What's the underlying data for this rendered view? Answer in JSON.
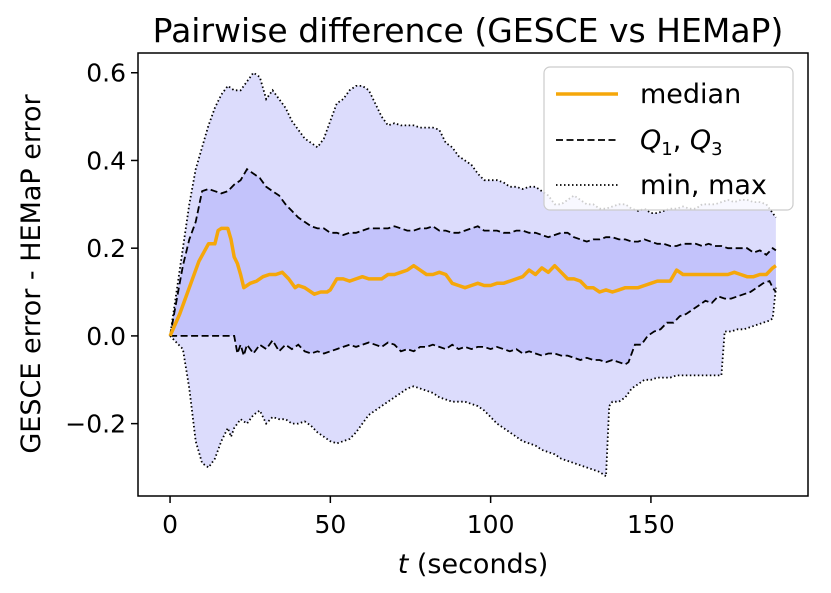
{
  "chart_data": {
    "type": "line",
    "title": "Pairwise difference (GESCE vs HEMaP)",
    "xlabel_italic": "t",
    "xlabel_rest": " (seconds)",
    "ylabel": "GESCE error - HEMaP error",
    "xlim": [
      -10,
      199
    ],
    "ylim": [
      -0.365,
      0.645
    ],
    "xticks": [
      0,
      50,
      100,
      150
    ],
    "xtick_labels": [
      "0",
      "50",
      "100",
      "150"
    ],
    "yticks": [
      -0.2,
      0.0,
      0.2,
      0.4,
      0.6
    ],
    "ytick_labels": [
      "−0.2",
      "0.0",
      "0.2",
      "0.4",
      "0.6"
    ],
    "legend_position": "top-right",
    "legend": {
      "median": "median",
      "q1": "Q",
      "q1_sub": "1",
      "q3": "Q",
      "q3_sub": "3",
      "minmax": "min, max"
    },
    "colors": {
      "median": "#f5a70a",
      "band_outer": "#dcdcfc",
      "band_inner": "#c3c3fb",
      "quartile_line": "#000000",
      "extreme_line": "#000000"
    },
    "series": [
      {
        "name": "median",
        "x": [
          0,
          3,
          6,
          9,
          12,
          14,
          15,
          16,
          17,
          18,
          19,
          20,
          21,
          22,
          23,
          24,
          25,
          27,
          29,
          31,
          33,
          35,
          37,
          39,
          40,
          42,
          44,
          45,
          47,
          49,
          50,
          52,
          54,
          56,
          58,
          60,
          62,
          64,
          66,
          68,
          70,
          72,
          74,
          76,
          78,
          80,
          82,
          84,
          86,
          88,
          90,
          92,
          94,
          96,
          98,
          100,
          102,
          104,
          106,
          108,
          110,
          112,
          114,
          116,
          118,
          120,
          122,
          124,
          126,
          128,
          130,
          132,
          134,
          136,
          138,
          140,
          142,
          144,
          146,
          148,
          150,
          152,
          154,
          156,
          158,
          160,
          162,
          164,
          166,
          168,
          170,
          172,
          174,
          176,
          178,
          180,
          182,
          184,
          186,
          188,
          189
        ],
        "values": [
          0.0,
          0.05,
          0.11,
          0.17,
          0.21,
          0.21,
          0.24,
          0.245,
          0.245,
          0.245,
          0.22,
          0.18,
          0.165,
          0.14,
          0.11,
          0.115,
          0.12,
          0.125,
          0.135,
          0.14,
          0.14,
          0.145,
          0.13,
          0.11,
          0.115,
          0.11,
          0.1,
          0.095,
          0.1,
          0.1,
          0.105,
          0.13,
          0.13,
          0.125,
          0.13,
          0.135,
          0.13,
          0.13,
          0.13,
          0.14,
          0.14,
          0.145,
          0.15,
          0.16,
          0.15,
          0.14,
          0.14,
          0.145,
          0.14,
          0.12,
          0.115,
          0.11,
          0.115,
          0.12,
          0.115,
          0.115,
          0.12,
          0.12,
          0.125,
          0.13,
          0.135,
          0.15,
          0.14,
          0.155,
          0.145,
          0.16,
          0.145,
          0.13,
          0.13,
          0.125,
          0.11,
          0.11,
          0.1,
          0.105,
          0.1,
          0.105,
          0.11,
          0.11,
          0.11,
          0.115,
          0.12,
          0.125,
          0.125,
          0.125,
          0.15,
          0.14,
          0.14,
          0.14,
          0.14,
          0.14,
          0.14,
          0.14,
          0.14,
          0.145,
          0.14,
          0.135,
          0.135,
          0.14,
          0.14,
          0.155,
          0.16
        ]
      },
      {
        "name": "Q3",
        "x": [
          0,
          2,
          4,
          6,
          8,
          10,
          12,
          14,
          16,
          18,
          20,
          22,
          24,
          26,
          28,
          30,
          32,
          34,
          36,
          38,
          40,
          42,
          44,
          46,
          48,
          50,
          52,
          54,
          56,
          58,
          60,
          62,
          64,
          66,
          68,
          70,
          72,
          74,
          76,
          78,
          80,
          82,
          84,
          86,
          88,
          90,
          92,
          94,
          96,
          98,
          100,
          102,
          104,
          106,
          108,
          110,
          112,
          114,
          116,
          118,
          120,
          122,
          124,
          126,
          128,
          130,
          132,
          134,
          136,
          138,
          140,
          142,
          144,
          146,
          148,
          150,
          152,
          154,
          156,
          158,
          160,
          162,
          164,
          166,
          168,
          170,
          172,
          174,
          176,
          178,
          180,
          182,
          184,
          186,
          188,
          189
        ],
        "values": [
          0.0,
          0.08,
          0.16,
          0.22,
          0.26,
          0.33,
          0.335,
          0.33,
          0.325,
          0.33,
          0.345,
          0.355,
          0.38,
          0.37,
          0.36,
          0.34,
          0.33,
          0.32,
          0.3,
          0.285,
          0.27,
          0.26,
          0.25,
          0.245,
          0.245,
          0.235,
          0.235,
          0.23,
          0.235,
          0.235,
          0.24,
          0.245,
          0.245,
          0.245,
          0.245,
          0.25,
          0.245,
          0.24,
          0.24,
          0.245,
          0.245,
          0.25,
          0.24,
          0.24,
          0.235,
          0.235,
          0.24,
          0.245,
          0.25,
          0.24,
          0.24,
          0.24,
          0.235,
          0.235,
          0.24,
          0.24,
          0.235,
          0.235,
          0.23,
          0.225,
          0.23,
          0.235,
          0.235,
          0.225,
          0.22,
          0.215,
          0.22,
          0.22,
          0.225,
          0.225,
          0.22,
          0.22,
          0.215,
          0.215,
          0.22,
          0.215,
          0.21,
          0.21,
          0.205,
          0.205,
          0.21,
          0.21,
          0.21,
          0.205,
          0.21,
          0.205,
          0.205,
          0.2,
          0.2,
          0.2,
          0.2,
          0.19,
          0.195,
          0.185,
          0.2,
          0.195
        ]
      },
      {
        "name": "Q1",
        "x": [
          0,
          10,
          20,
          21,
          22,
          23,
          24,
          26,
          28,
          30,
          32,
          34,
          36,
          38,
          40,
          42,
          44,
          46,
          48,
          50,
          52,
          54,
          56,
          58,
          60,
          62,
          64,
          66,
          68,
          70,
          72,
          74,
          76,
          78,
          80,
          82,
          84,
          86,
          88,
          90,
          92,
          94,
          96,
          98,
          100,
          102,
          104,
          106,
          108,
          110,
          112,
          114,
          116,
          118,
          120,
          122,
          124,
          126,
          128,
          130,
          132,
          134,
          136,
          138,
          140,
          142,
          143,
          145,
          147,
          149,
          151,
          153,
          155,
          157,
          159,
          161,
          163,
          165,
          167,
          169,
          171,
          173,
          175,
          177,
          179,
          181,
          183,
          185,
          187,
          188,
          189
        ],
        "values": [
          0.0,
          0.0,
          0.0,
          -0.04,
          -0.02,
          -0.045,
          -0.02,
          -0.04,
          -0.02,
          -0.03,
          -0.01,
          -0.035,
          -0.02,
          -0.03,
          -0.02,
          -0.035,
          -0.04,
          -0.035,
          -0.04,
          -0.035,
          -0.03,
          -0.025,
          -0.02,
          -0.025,
          -0.02,
          -0.015,
          -0.02,
          -0.025,
          -0.015,
          -0.02,
          -0.035,
          -0.03,
          -0.035,
          -0.025,
          -0.025,
          -0.02,
          -0.025,
          -0.03,
          -0.02,
          -0.03,
          -0.025,
          -0.03,
          -0.025,
          -0.025,
          -0.03,
          -0.025,
          -0.03,
          -0.035,
          -0.03,
          -0.04,
          -0.035,
          -0.04,
          -0.045,
          -0.04,
          -0.04,
          -0.045,
          -0.045,
          -0.05,
          -0.055,
          -0.05,
          -0.055,
          -0.055,
          -0.06,
          -0.055,
          -0.06,
          -0.065,
          -0.06,
          -0.02,
          -0.02,
          0.0,
          0.01,
          0.015,
          0.03,
          0.03,
          0.045,
          0.05,
          0.06,
          0.07,
          0.08,
          0.075,
          0.09,
          0.085,
          0.085,
          0.09,
          0.095,
          0.1,
          0.11,
          0.12,
          0.125,
          0.11,
          0.1
        ]
      },
      {
        "name": "max",
        "x": [
          0,
          2,
          4,
          6,
          8,
          10,
          12,
          14,
          16,
          18,
          20,
          22,
          24,
          26,
          28,
          30,
          32,
          34,
          36,
          38,
          40,
          42,
          44,
          46,
          48,
          50,
          52,
          54,
          56,
          58,
          60,
          62,
          64,
          66,
          68,
          70,
          72,
          74,
          76,
          78,
          80,
          82,
          84,
          86,
          88,
          90,
          92,
          94,
          96,
          98,
          100,
          102,
          104,
          106,
          108,
          110,
          112,
          114,
          116,
          118,
          120,
          122,
          124,
          126,
          128,
          130,
          132,
          134,
          136,
          138,
          140,
          142,
          144,
          146,
          148,
          150,
          152,
          154,
          156,
          158,
          160,
          162,
          164,
          166,
          168,
          170,
          172,
          174,
          176,
          178,
          180,
          182,
          184,
          186,
          188,
          189
        ],
        "values": [
          0.0,
          0.1,
          0.2,
          0.3,
          0.38,
          0.43,
          0.48,
          0.52,
          0.55,
          0.57,
          0.56,
          0.56,
          0.58,
          0.6,
          0.59,
          0.54,
          0.56,
          0.54,
          0.52,
          0.49,
          0.47,
          0.45,
          0.44,
          0.43,
          0.45,
          0.49,
          0.53,
          0.54,
          0.56,
          0.57,
          0.57,
          0.56,
          0.53,
          0.5,
          0.48,
          0.485,
          0.48,
          0.48,
          0.48,
          0.475,
          0.475,
          0.475,
          0.47,
          0.44,
          0.43,
          0.41,
          0.4,
          0.39,
          0.37,
          0.355,
          0.355,
          0.355,
          0.35,
          0.34,
          0.34,
          0.335,
          0.34,
          0.34,
          0.33,
          0.32,
          0.3,
          0.3,
          0.31,
          0.32,
          0.31,
          0.3,
          0.3,
          0.29,
          0.29,
          0.295,
          0.3,
          0.3,
          0.29,
          0.285,
          0.29,
          0.28,
          0.28,
          0.285,
          0.29,
          0.29,
          0.295,
          0.29,
          0.29,
          0.3,
          0.3,
          0.3,
          0.305,
          0.31,
          0.305,
          0.31,
          0.31,
          0.305,
          0.305,
          0.3,
          0.28,
          0.27
        ]
      },
      {
        "name": "min",
        "x": [
          0,
          4,
          6,
          8,
          10,
          12,
          14,
          16,
          18,
          19,
          20,
          22,
          24,
          26,
          28,
          30,
          32,
          34,
          36,
          38,
          40,
          42,
          44,
          46,
          48,
          50,
          52,
          54,
          56,
          58,
          60,
          62,
          64,
          66,
          68,
          70,
          72,
          74,
          76,
          78,
          80,
          82,
          84,
          86,
          88,
          90,
          92,
          94,
          96,
          98,
          100,
          102,
          104,
          106,
          108,
          110,
          112,
          114,
          116,
          118,
          120,
          122,
          124,
          126,
          128,
          130,
          132,
          134,
          136,
          137,
          138,
          140,
          142,
          144,
          146,
          148,
          150,
          152,
          154,
          156,
          158,
          160,
          162,
          164,
          166,
          168,
          170,
          172,
          173,
          175,
          177,
          179,
          181,
          183,
          185,
          187,
          188,
          189
        ],
        "values": [
          0.0,
          -0.03,
          -0.12,
          -0.24,
          -0.29,
          -0.3,
          -0.28,
          -0.24,
          -0.21,
          -0.23,
          -0.21,
          -0.19,
          -0.2,
          -0.18,
          -0.17,
          -0.2,
          -0.185,
          -0.19,
          -0.19,
          -0.2,
          -0.2,
          -0.195,
          -0.205,
          -0.22,
          -0.23,
          -0.24,
          -0.245,
          -0.24,
          -0.235,
          -0.22,
          -0.2,
          -0.18,
          -0.17,
          -0.16,
          -0.15,
          -0.14,
          -0.13,
          -0.12,
          -0.115,
          -0.12,
          -0.125,
          -0.13,
          -0.14,
          -0.145,
          -0.15,
          -0.15,
          -0.15,
          -0.155,
          -0.16,
          -0.17,
          -0.185,
          -0.2,
          -0.21,
          -0.22,
          -0.23,
          -0.24,
          -0.245,
          -0.25,
          -0.26,
          -0.265,
          -0.27,
          -0.28,
          -0.285,
          -0.29,
          -0.295,
          -0.3,
          -0.305,
          -0.31,
          -0.32,
          -0.16,
          -0.15,
          -0.15,
          -0.14,
          -0.12,
          -0.11,
          -0.1,
          -0.1,
          -0.095,
          -0.095,
          -0.095,
          -0.09,
          -0.09,
          -0.09,
          -0.09,
          -0.09,
          -0.09,
          -0.09,
          -0.09,
          0.01,
          0.01,
          0.015,
          0.015,
          0.02,
          0.025,
          0.03,
          0.035,
          0.04,
          0.11
        ]
      }
    ]
  }
}
